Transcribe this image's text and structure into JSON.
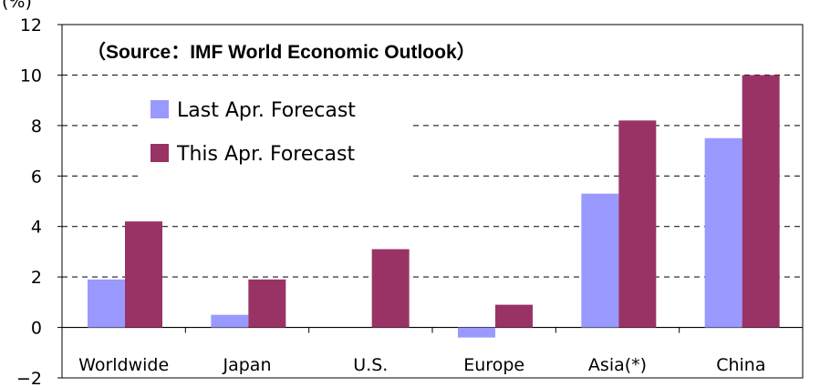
{
  "chart_data": {
    "type": "bar",
    "title": "",
    "annotation": "（Source：IMF World Economic Outlook）",
    "ylabel": "(%)",
    "xlabel": "",
    "ylim": [
      -2,
      12
    ],
    "yticks": [
      12,
      10,
      8,
      6,
      4,
      2,
      0,
      -2
    ],
    "ytick_labels": [
      "12",
      "10",
      "8",
      "6",
      "4",
      "2",
      "0",
      "−2"
    ],
    "grid": "horizontal dashed",
    "legend_position": "top-left",
    "categories": [
      "Worldwide",
      "Japan",
      "U.S.",
      "Europe",
      "Asia(*)",
      "China"
    ],
    "series": [
      {
        "name": "Last Apr. Forecast",
        "color": "#9999ff",
        "values": [
          1.9,
          0.5,
          0.0,
          -0.4,
          5.3,
          7.5
        ]
      },
      {
        "name": "This Apr. Forecast",
        "color": "#993366",
        "values": [
          4.2,
          1.9,
          3.1,
          0.9,
          8.2,
          10.0
        ]
      }
    ]
  }
}
